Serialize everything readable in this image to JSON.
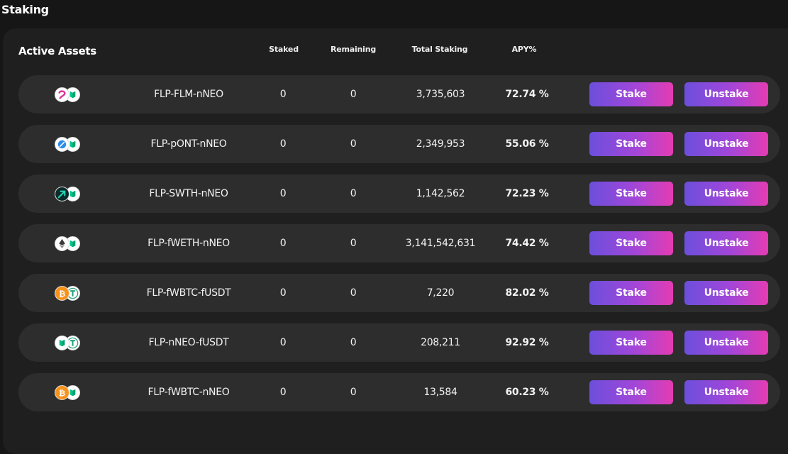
{
  "page": {
    "title": "Staking"
  },
  "panel": {
    "title": "Active Assets",
    "columns": {
      "staked": "Staked",
      "remaining": "Remaining",
      "total": "Total Staking",
      "apy": "APY%"
    }
  },
  "buttons": {
    "stake": "Stake",
    "unstake": "Unstake"
  },
  "colors": {
    "background": "#171617",
    "panel": "#1f1f1f",
    "row": "#2d2d2d",
    "button_gradient_start": "#6c4fdc",
    "button_gradient_end": "#e43cb2"
  },
  "assets": [
    {
      "name": "FLP-FLM-nNEO",
      "staked": "0",
      "remaining": "0",
      "total_staking": "3,735,603",
      "apy": "72.74 %",
      "icons": [
        "flm-icon",
        "neo-icon"
      ]
    },
    {
      "name": "FLP-pONT-nNEO",
      "staked": "0",
      "remaining": "0",
      "total_staking": "2,349,953",
      "apy": "55.06 %",
      "icons": [
        "ont-icon",
        "neo-icon"
      ]
    },
    {
      "name": "FLP-SWTH-nNEO",
      "staked": "0",
      "remaining": "0",
      "total_staking": "1,142,562",
      "apy": "72.23 %",
      "icons": [
        "swth-icon",
        "neo-icon"
      ]
    },
    {
      "name": "FLP-fWETH-nNEO",
      "staked": "0",
      "remaining": "0",
      "total_staking": "3,141,542,631",
      "apy": "74.42 %",
      "icons": [
        "eth-icon",
        "neo-icon"
      ]
    },
    {
      "name": "FLP-fWBTC-fUSDT",
      "staked": "0",
      "remaining": "0",
      "total_staking": "7,220",
      "apy": "82.02 %",
      "icons": [
        "btc-icon",
        "usdt-icon"
      ]
    },
    {
      "name": "FLP-nNEO-fUSDT",
      "staked": "0",
      "remaining": "0",
      "total_staking": "208,211",
      "apy": "92.92 %",
      "icons": [
        "neo-icon",
        "usdt-icon"
      ]
    },
    {
      "name": "FLP-fWBTC-nNEO",
      "staked": "0",
      "remaining": "0",
      "total_staking": "13,584",
      "apy": "60.23 %",
      "icons": [
        "btc-icon",
        "neo-icon"
      ]
    }
  ]
}
